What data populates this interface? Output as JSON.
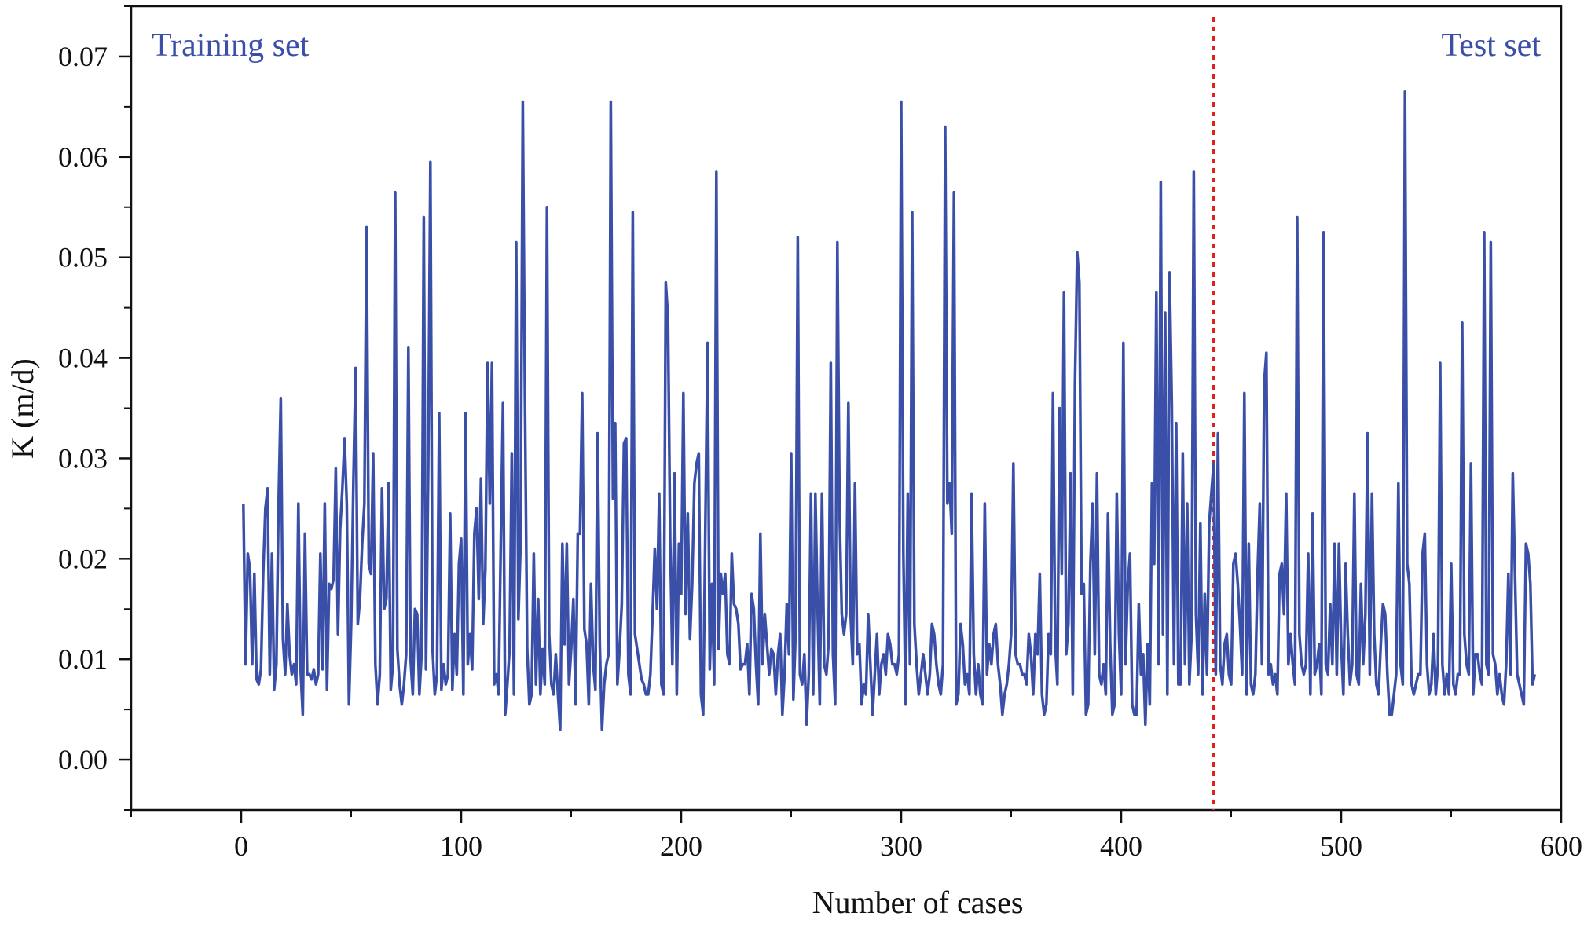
{
  "chart_data": {
    "type": "line",
    "xlabel": "Number of cases",
    "ylabel": "K (m/d)",
    "xlim": [
      -50,
      600
    ],
    "ylim": [
      -0.005,
      0.075
    ],
    "x_ticks": [
      0,
      100,
      200,
      300,
      400,
      500,
      600
    ],
    "x_tick_labels": [
      "0",
      "100",
      "200",
      "300",
      "400",
      "500",
      "600"
    ],
    "y_ticks": [
      0.0,
      0.01,
      0.02,
      0.03,
      0.04,
      0.05,
      0.06,
      0.07
    ],
    "y_tick_labels": [
      "0.00",
      "0.01",
      "0.02",
      "0.03",
      "0.04",
      "0.05",
      "0.06",
      "0.07"
    ],
    "grid": false,
    "series_color": "#3a4fa8",
    "divider": {
      "x": 442,
      "color": "#e0201c",
      "style": "dotted"
    },
    "annotations": {
      "left": "Training set",
      "right": "Test set"
    },
    "series": [
      {
        "x_start": 1,
        "values": [
          0.0255,
          0.0095,
          0.0205,
          0.019,
          0.0095,
          0.0185,
          0.008,
          0.0075,
          0.009,
          0.0185,
          0.025,
          0.027,
          0.0085,
          0.0205,
          0.007,
          0.0095,
          0.0255,
          0.036,
          0.012,
          0.0085,
          0.0155,
          0.0105,
          0.0085,
          0.0095,
          0.0075,
          0.0255,
          0.009,
          0.0045,
          0.0225,
          0.0085,
          0.0085,
          0.008,
          0.009,
          0.0075,
          0.0085,
          0.0205,
          0.009,
          0.0255,
          0.007,
          0.0175,
          0.017,
          0.018,
          0.029,
          0.0125,
          0.023,
          0.027,
          0.032,
          0.0255,
          0.0055,
          0.0135,
          0.0275,
          0.039,
          0.0135,
          0.016,
          0.0215,
          0.0255,
          0.053,
          0.0195,
          0.0185,
          0.0305,
          0.0095,
          0.0055,
          0.0085,
          0.027,
          0.015,
          0.016,
          0.0275,
          0.007,
          0.0095,
          0.0565,
          0.011,
          0.0075,
          0.0055,
          0.0075,
          0.0105,
          0.041,
          0.01,
          0.0065,
          0.015,
          0.0145,
          0.0065,
          0.0105,
          0.054,
          0.009,
          0.0285,
          0.0595,
          0.011,
          0.0065,
          0.0085,
          0.0345,
          0.007,
          0.0095,
          0.0075,
          0.0085,
          0.0245,
          0.007,
          0.0125,
          0.0085,
          0.0195,
          0.022,
          0.0065,
          0.0345,
          0.0095,
          0.0125,
          0.009,
          0.0225,
          0.025,
          0.016,
          0.028,
          0.0135,
          0.019,
          0.0395,
          0.0255,
          0.0395,
          0.0075,
          0.0085,
          0.0065,
          0.0215,
          0.0355,
          0.0045,
          0.0075,
          0.011,
          0.0305,
          0.0065,
          0.0515,
          0.014,
          0.0215,
          0.0655,
          0.0355,
          0.011,
          0.0055,
          0.0065,
          0.0205,
          0.0075,
          0.016,
          0.0065,
          0.011,
          0.0075,
          0.055,
          0.0125,
          0.0075,
          0.0065,
          0.0105,
          0.0065,
          0.003,
          0.0215,
          0.0115,
          0.0215,
          0.0075,
          0.011,
          0.016,
          0.0055,
          0.0225,
          0.0225,
          0.0365,
          0.013,
          0.0115,
          0.0055,
          0.0175,
          0.0095,
          0.007,
          0.0325,
          0.0115,
          0.003,
          0.0075,
          0.0095,
          0.0105,
          0.0655,
          0.026,
          0.0335,
          0.0075,
          0.011,
          0.0155,
          0.0315,
          0.032,
          0.0085,
          0.0065,
          0.0545,
          0.0125,
          0.011,
          0.0095,
          0.008,
          0.0075,
          0.0065,
          0.0065,
          0.0085,
          0.0145,
          0.021,
          0.015,
          0.0265,
          0.0075,
          0.0065,
          0.0475,
          0.044,
          0.022,
          0.0095,
          0.0285,
          0.0065,
          0.0215,
          0.0165,
          0.0365,
          0.0145,
          0.0245,
          0.012,
          0.0175,
          0.0275,
          0.0295,
          0.0305,
          0.0065,
          0.0045,
          0.0235,
          0.0415,
          0.009,
          0.0175,
          0.0075,
          0.0585,
          0.011,
          0.0185,
          0.0165,
          0.0185,
          0.0105,
          0.0095,
          0.0205,
          0.0155,
          0.015,
          0.0135,
          0.009,
          0.0095,
          0.0095,
          0.0115,
          0.0065,
          0.0165,
          0.015,
          0.0095,
          0.0055,
          0.0225,
          0.0095,
          0.0145,
          0.0115,
          0.0085,
          0.011,
          0.0105,
          0.0065,
          0.0105,
          0.0125,
          0.0045,
          0.0085,
          0.0155,
          0.0105,
          0.0305,
          0.006,
          0.0125,
          0.052,
          0.0085,
          0.0075,
          0.0105,
          0.0035,
          0.0085,
          0.0265,
          0.0065,
          0.0265,
          0.015,
          0.0055,
          0.0265,
          0.0095,
          0.0085,
          0.0115,
          0.0395,
          0.0105,
          0.0055,
          0.0515,
          0.0245,
          0.0145,
          0.0125,
          0.0145,
          0.0355,
          0.0145,
          0.0095,
          0.0275,
          0.0105,
          0.0115,
          0.0055,
          0.0075,
          0.0065,
          0.0145,
          0.0095,
          0.0045,
          0.0085,
          0.0125,
          0.0065,
          0.0095,
          0.0105,
          0.0085,
          0.0125,
          0.0115,
          0.0095,
          0.0095,
          0.0085,
          0.0105,
          0.0655,
          0.0205,
          0.0055,
          0.0265,
          0.0095,
          0.0545,
          0.0135,
          0.0095,
          0.0065,
          0.0085,
          0.0105,
          0.0085,
          0.0065,
          0.0085,
          0.0135,
          0.0125,
          0.0095,
          0.0075,
          0.0065,
          0.0095,
          0.063,
          0.0255,
          0.0275,
          0.0225,
          0.0565,
          0.0055,
          0.0065,
          0.0135,
          0.0115,
          0.0075,
          0.0085,
          0.0065,
          0.0265,
          0.0105,
          0.0065,
          0.0095,
          0.0065,
          0.0055,
          0.0255,
          0.0085,
          0.0115,
          0.0095,
          0.0125,
          0.0135,
          0.0095,
          0.0075,
          0.0045,
          0.0065,
          0.0075,
          0.0095,
          0.0125,
          0.0295,
          0.0105,
          0.0095,
          0.0095,
          0.0085,
          0.0085,
          0.0075,
          0.0125,
          0.0105,
          0.0065,
          0.0125,
          0.0105,
          0.0185,
          0.0065,
          0.0045,
          0.0055,
          0.0125,
          0.0105,
          0.0365,
          0.0115,
          0.0075,
          0.035,
          0.0185,
          0.0465,
          0.0105,
          0.0135,
          0.0285,
          0.0065,
          0.0375,
          0.0505,
          0.0475,
          0.0165,
          0.0175,
          0.0045,
          0.0055,
          0.0195,
          0.0255,
          0.0105,
          0.0285,
          0.0085,
          0.0075,
          0.0095,
          0.0065,
          0.0245,
          0.0115,
          0.0045,
          0.0055,
          0.0265,
          0.0125,
          0.0065,
          0.0415,
          0.0095,
          0.0175,
          0.0205,
          0.0055,
          0.0045,
          0.0045,
          0.0155,
          0.0085,
          0.0105,
          0.0035,
          0.0115,
          0.0055,
          0.0275,
          0.0195,
          0.0465,
          0.0095,
          0.0575,
          0.0125,
          0.0445,
          0.0065,
          0.0485,
          0.0355,
          0.0095,
          0.0335,
          0.0075,
          0.0075,
          0.0305,
          0.0095,
          0.0255,
          0.0075,
          0.0125,
          0.0585,
          0.0145,
          0.0085,
          0.0235,
          0.0065,
          0.0165,
          0.0085,
          0.0235,
          0.0265,
          0.0295,
          0.0085,
          0.0325,
          0.0095,
          0.0075,
          0.0115,
          0.0125,
          0.0085,
          0.0075,
          0.0195,
          0.0205,
          0.0175,
          0.0135,
          0.0085,
          0.0365,
          0.0065,
          0.0215,
          0.0075,
          0.0065,
          0.0085,
          0.0185,
          0.0255,
          0.0095,
          0.0375,
          0.0405,
          0.0085,
          0.0095,
          0.0075,
          0.0085,
          0.0065,
          0.0185,
          0.0195,
          0.0145,
          0.0265,
          0.0095,
          0.0125,
          0.0095,
          0.0075,
          0.054,
          0.0125,
          0.0095,
          0.0085,
          0.0095,
          0.0205,
          0.0065,
          0.0245,
          0.0085,
          0.0095,
          0.0115,
          0.0065,
          0.0525,
          0.0095,
          0.0085,
          0.0155,
          0.0095,
          0.0215,
          0.0085,
          0.0215,
          0.0115,
          0.0065,
          0.0195,
          0.0125,
          0.0075,
          0.0095,
          0.0265,
          0.0085,
          0.0075,
          0.0175,
          0.0095,
          0.0145,
          0.0325,
          0.0085,
          0.0265,
          0.0125,
          0.0075,
          0.0065,
          0.0115,
          0.0155,
          0.0145,
          0.0085,
          0.0045,
          0.0045,
          0.0065,
          0.0085,
          0.0275,
          0.0095,
          0.0075,
          0.0665,
          0.0195,
          0.0175,
          0.0075,
          0.0065,
          0.0075,
          0.0085,
          0.0085,
          0.0205,
          0.0225,
          0.0095,
          0.0065,
          0.0075,
          0.0125,
          0.0065,
          0.0095,
          0.0395,
          0.0095,
          0.0065,
          0.0085,
          0.0065,
          0.0195,
          0.0075,
          0.0065,
          0.0085,
          0.0085,
          0.0435,
          0.0125,
          0.0095,
          0.0085,
          0.0295,
          0.0065,
          0.0105,
          0.0105,
          0.0085,
          0.0075,
          0.0525,
          0.0095,
          0.0085,
          0.0515,
          0.0105,
          0.0095,
          0.0065,
          0.0085,
          0.0065,
          0.0055,
          0.0095,
          0.0185,
          0.0085,
          0.0285,
          0.0185,
          0.0085,
          0.0075,
          0.0065,
          0.0055,
          0.0215,
          0.0205,
          0.0175,
          0.0075,
          0.0085
        ]
      }
    ]
  }
}
